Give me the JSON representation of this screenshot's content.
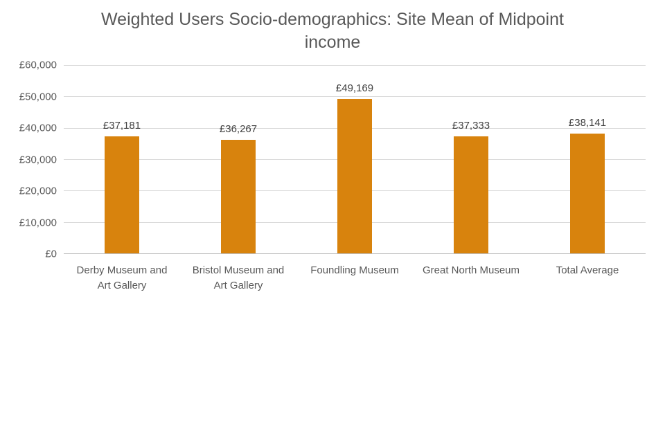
{
  "chart_data": {
    "type": "bar",
    "title": "Weighted Users Socio-demographics: Site Mean of Midpoint income",
    "categories": [
      "Derby Museum and Art Gallery",
      "Bristol Museum and Art Gallery",
      "Foundling Museum",
      "Great North Museum",
      "Total Average"
    ],
    "values": [
      37181,
      36267,
      49169,
      37333,
      38141
    ],
    "data_labels": [
      "£37,181",
      "£36,267",
      "£49,169",
      "£37,333",
      "£38,141"
    ],
    "xlabel": "",
    "ylabel": "",
    "ylim": [
      0,
      60000
    ],
    "yticks": [
      0,
      10000,
      20000,
      30000,
      40000,
      50000,
      60000
    ],
    "ytick_labels": [
      "£0",
      "£10,000",
      "£20,000",
      "£30,000",
      "£40,000",
      "£50,000",
      "£60,000"
    ],
    "grid": "horizontal",
    "legend": "none",
    "colors": {
      "bar": "#D8830D",
      "title_text": "#595959",
      "axis_text": "#595959",
      "value_label_text": "#404040",
      "gridline": "#D9D9D9",
      "axis_line": "#BFBFBF",
      "background": "#FFFFFF"
    }
  }
}
